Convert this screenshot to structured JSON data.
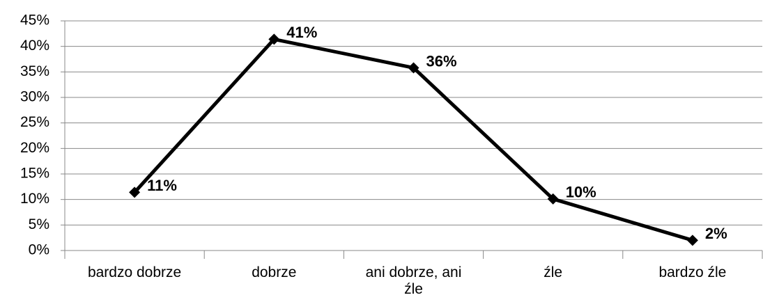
{
  "chart_data": {
    "type": "line",
    "categories": [
      "bardzo dobrze",
      "dobrze",
      "ani dobrze, ani źle",
      "źle",
      "bardzo źle"
    ],
    "series": [
      {
        "name": "",
        "color": "#000000",
        "values": [
          11.4,
          41.4,
          35.8,
          10.1,
          2.0
        ],
        "value_labels": [
          "11%",
          "41%",
          "36%",
          "10%",
          "2%"
        ]
      }
    ],
    "ylim": [
      0,
      45
    ],
    "yticks": [
      {
        "value": 0,
        "label": "0%"
      },
      {
        "value": 5,
        "label": "5%"
      },
      {
        "value": 10,
        "label": "10%"
      },
      {
        "value": 15,
        "label": "15%"
      },
      {
        "value": 20,
        "label": "20%"
      },
      {
        "value": 25,
        "label": "25%"
      },
      {
        "value": 30,
        "label": "30%"
      },
      {
        "value": 35,
        "label": "35%"
      },
      {
        "value": 40,
        "label": "40%"
      },
      {
        "value": 45,
        "label": "45%"
      }
    ],
    "grid": true
  }
}
